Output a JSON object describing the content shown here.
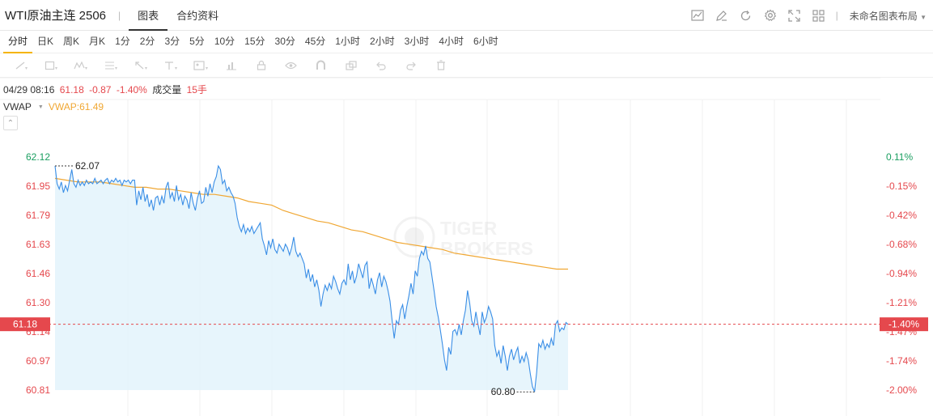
{
  "header": {
    "symbol": "WTI原油主连 2506",
    "tabs": [
      {
        "label": "图表",
        "active": true
      },
      {
        "label": "合约资料",
        "active": false
      }
    ],
    "tool_icons": [
      "chart-type-icon",
      "draw-edit-icon",
      "refresh-icon",
      "settings-icon",
      "fullscreen-icon",
      "grid-layout-icon"
    ],
    "layout_label": "未命名图表布局"
  },
  "periods": [
    "分时",
    "日K",
    "周K",
    "月K",
    "1分",
    "2分",
    "3分",
    "5分",
    "10分",
    "15分",
    "30分",
    "45分",
    "1小时",
    "2小时",
    "3小时",
    "4小时",
    "6小时"
  ],
  "active_period": "分时",
  "draw_tools": [
    "line-tool-icon",
    "rect-tool-icon",
    "pattern-tool-icon",
    "fib-tool-icon",
    "arrow-tool-icon",
    "text-tool-icon",
    "image-tool-icon",
    "measure-tool-icon",
    "lock-icon",
    "eye-icon",
    "magnet-icon",
    "layers-icon",
    "undo-icon",
    "redo-icon",
    "trash-icon"
  ],
  "info": {
    "datetime": "04/29 08:16",
    "price": "61.18",
    "change": "-0.87",
    "change_pct": "-1.40%",
    "volume_label": "成交量",
    "volume": "15手"
  },
  "vwap": {
    "label": "VWAP",
    "value_text": "VWAP:61.49"
  },
  "watermark": {
    "line1": "TIGER",
    "line2": "BROKERS"
  },
  "colors": {
    "price_line": "#3a8ee6",
    "price_fill": "#e3f3fc",
    "vwap_line": "#f0a733",
    "up": "#1a9e60",
    "down": "#e5484d",
    "vwap_text": "#f0a733"
  },
  "chart_data": {
    "type": "line",
    "y_ticks": [
      "62.12",
      "61.95",
      "61.79",
      "61.63",
      "61.46",
      "61.30",
      "61.14",
      "60.97",
      "60.81"
    ],
    "pct_ticks": [
      "0.11%",
      "-0.15%",
      "-0.42%",
      "-0.68%",
      "-0.94%",
      "-1.21%",
      "-1.47%",
      "-1.74%",
      "-2.00%"
    ],
    "ylim": [
      60.81,
      62.12
    ],
    "current_price": "61.18",
    "current_pct": "-1.40%",
    "high_label": "62.07",
    "low_label": "60.80",
    "high_value": 62.07,
    "low_value": 60.8,
    "grid": true,
    "series": [
      {
        "values": [
          62.07,
          61.97,
          61.94,
          61.98,
          61.92,
          61.96,
          61.93,
          61.99,
          62.05,
          61.97,
          61.95,
          61.99,
          61.96,
          61.98,
          61.96,
          61.99,
          61.97,
          61.98,
          61.97,
          62.0,
          61.97,
          61.98,
          61.99,
          61.97,
          61.99,
          62.0,
          61.97,
          61.99,
          61.98,
          62.0,
          61.98,
          61.99,
          61.96,
          61.99,
          61.98,
          61.99,
          61.97,
          61.99,
          61.99,
          61.85,
          61.93,
          61.88,
          61.95,
          61.87,
          61.91,
          61.84,
          61.88,
          61.82,
          61.89,
          61.9,
          61.85,
          61.9,
          61.86,
          61.95,
          61.98,
          61.89,
          61.92,
          61.87,
          61.96,
          61.88,
          61.91,
          61.85,
          61.9,
          61.88,
          61.83,
          61.92,
          61.86,
          61.82,
          61.89,
          61.93,
          61.86,
          61.87,
          61.95,
          61.9,
          61.97,
          61.92,
          61.98,
          62.01,
          62.07,
          62.05,
          61.97,
          61.99,
          61.93,
          61.95,
          61.92,
          61.9,
          61.86,
          61.78,
          61.73,
          61.7,
          61.74,
          61.69,
          61.72,
          61.7,
          61.73,
          61.69,
          61.71,
          61.73,
          61.75,
          61.66,
          61.62,
          61.57,
          61.65,
          61.61,
          61.66,
          61.6,
          61.58,
          61.63,
          61.61,
          61.59,
          61.63,
          61.61,
          61.57,
          61.61,
          61.67,
          61.59,
          61.56,
          61.58,
          61.55,
          61.52,
          61.44,
          61.49,
          61.42,
          61.46,
          61.39,
          61.43,
          61.37,
          61.28,
          61.35,
          61.4,
          61.37,
          61.41,
          61.38,
          61.45,
          61.42,
          61.38,
          61.35,
          61.41,
          61.43,
          61.4,
          61.52,
          61.43,
          61.48,
          61.41,
          61.45,
          61.52,
          61.48,
          61.44,
          61.51,
          61.53,
          61.38,
          61.44,
          61.4,
          61.35,
          61.43,
          61.47,
          61.39,
          61.45,
          61.42,
          61.37,
          61.31,
          61.2,
          61.1,
          61.2,
          61.18,
          61.26,
          61.29,
          61.21,
          61.28,
          61.34,
          61.41,
          61.35,
          61.48,
          61.45,
          61.55,
          61.59,
          61.57,
          61.62,
          61.55,
          61.53,
          61.45,
          61.37,
          61.28,
          61.22,
          61.15,
          61.07,
          60.98,
          60.92,
          61.05,
          61.01,
          61.14,
          61.15,
          61.12,
          61.18,
          61.12,
          61.2,
          61.26,
          61.37,
          61.3,
          61.2,
          61.17,
          61.25,
          61.18,
          61.12,
          61.25,
          61.19,
          61.22,
          61.28,
          61.25,
          61.21,
          61.06,
          61.0,
          61.03,
          60.96,
          61.06,
          61.0,
          60.92,
          61.0,
          61.04,
          60.98,
          61.02,
          61.05,
          60.96,
          61.0,
          60.97,
          61.02,
          60.98,
          60.9,
          60.83,
          60.8,
          60.91,
          61.07,
          61.05,
          61.09,
          61.04,
          61.07,
          61.05,
          61.1,
          61.06,
          61.18,
          61.2,
          61.14,
          61.16,
          61.15,
          61.19,
          61.18
        ]
      },
      {
        "values": [
          62.0,
          61.99,
          61.98,
          61.98,
          61.98,
          61.97,
          61.96,
          61.95,
          61.95,
          61.94,
          61.94,
          61.93,
          61.92,
          61.91,
          61.91,
          61.9,
          61.89,
          61.87,
          61.86,
          61.85,
          61.82,
          61.8,
          61.78,
          61.76,
          61.75,
          61.73,
          61.71,
          61.7,
          61.68,
          61.66,
          61.64,
          61.63,
          61.62,
          61.61,
          61.6,
          61.58,
          61.57,
          61.56,
          61.55,
          61.54,
          61.53,
          61.52,
          61.51,
          61.5,
          61.49,
          61.49
        ]
      }
    ]
  }
}
